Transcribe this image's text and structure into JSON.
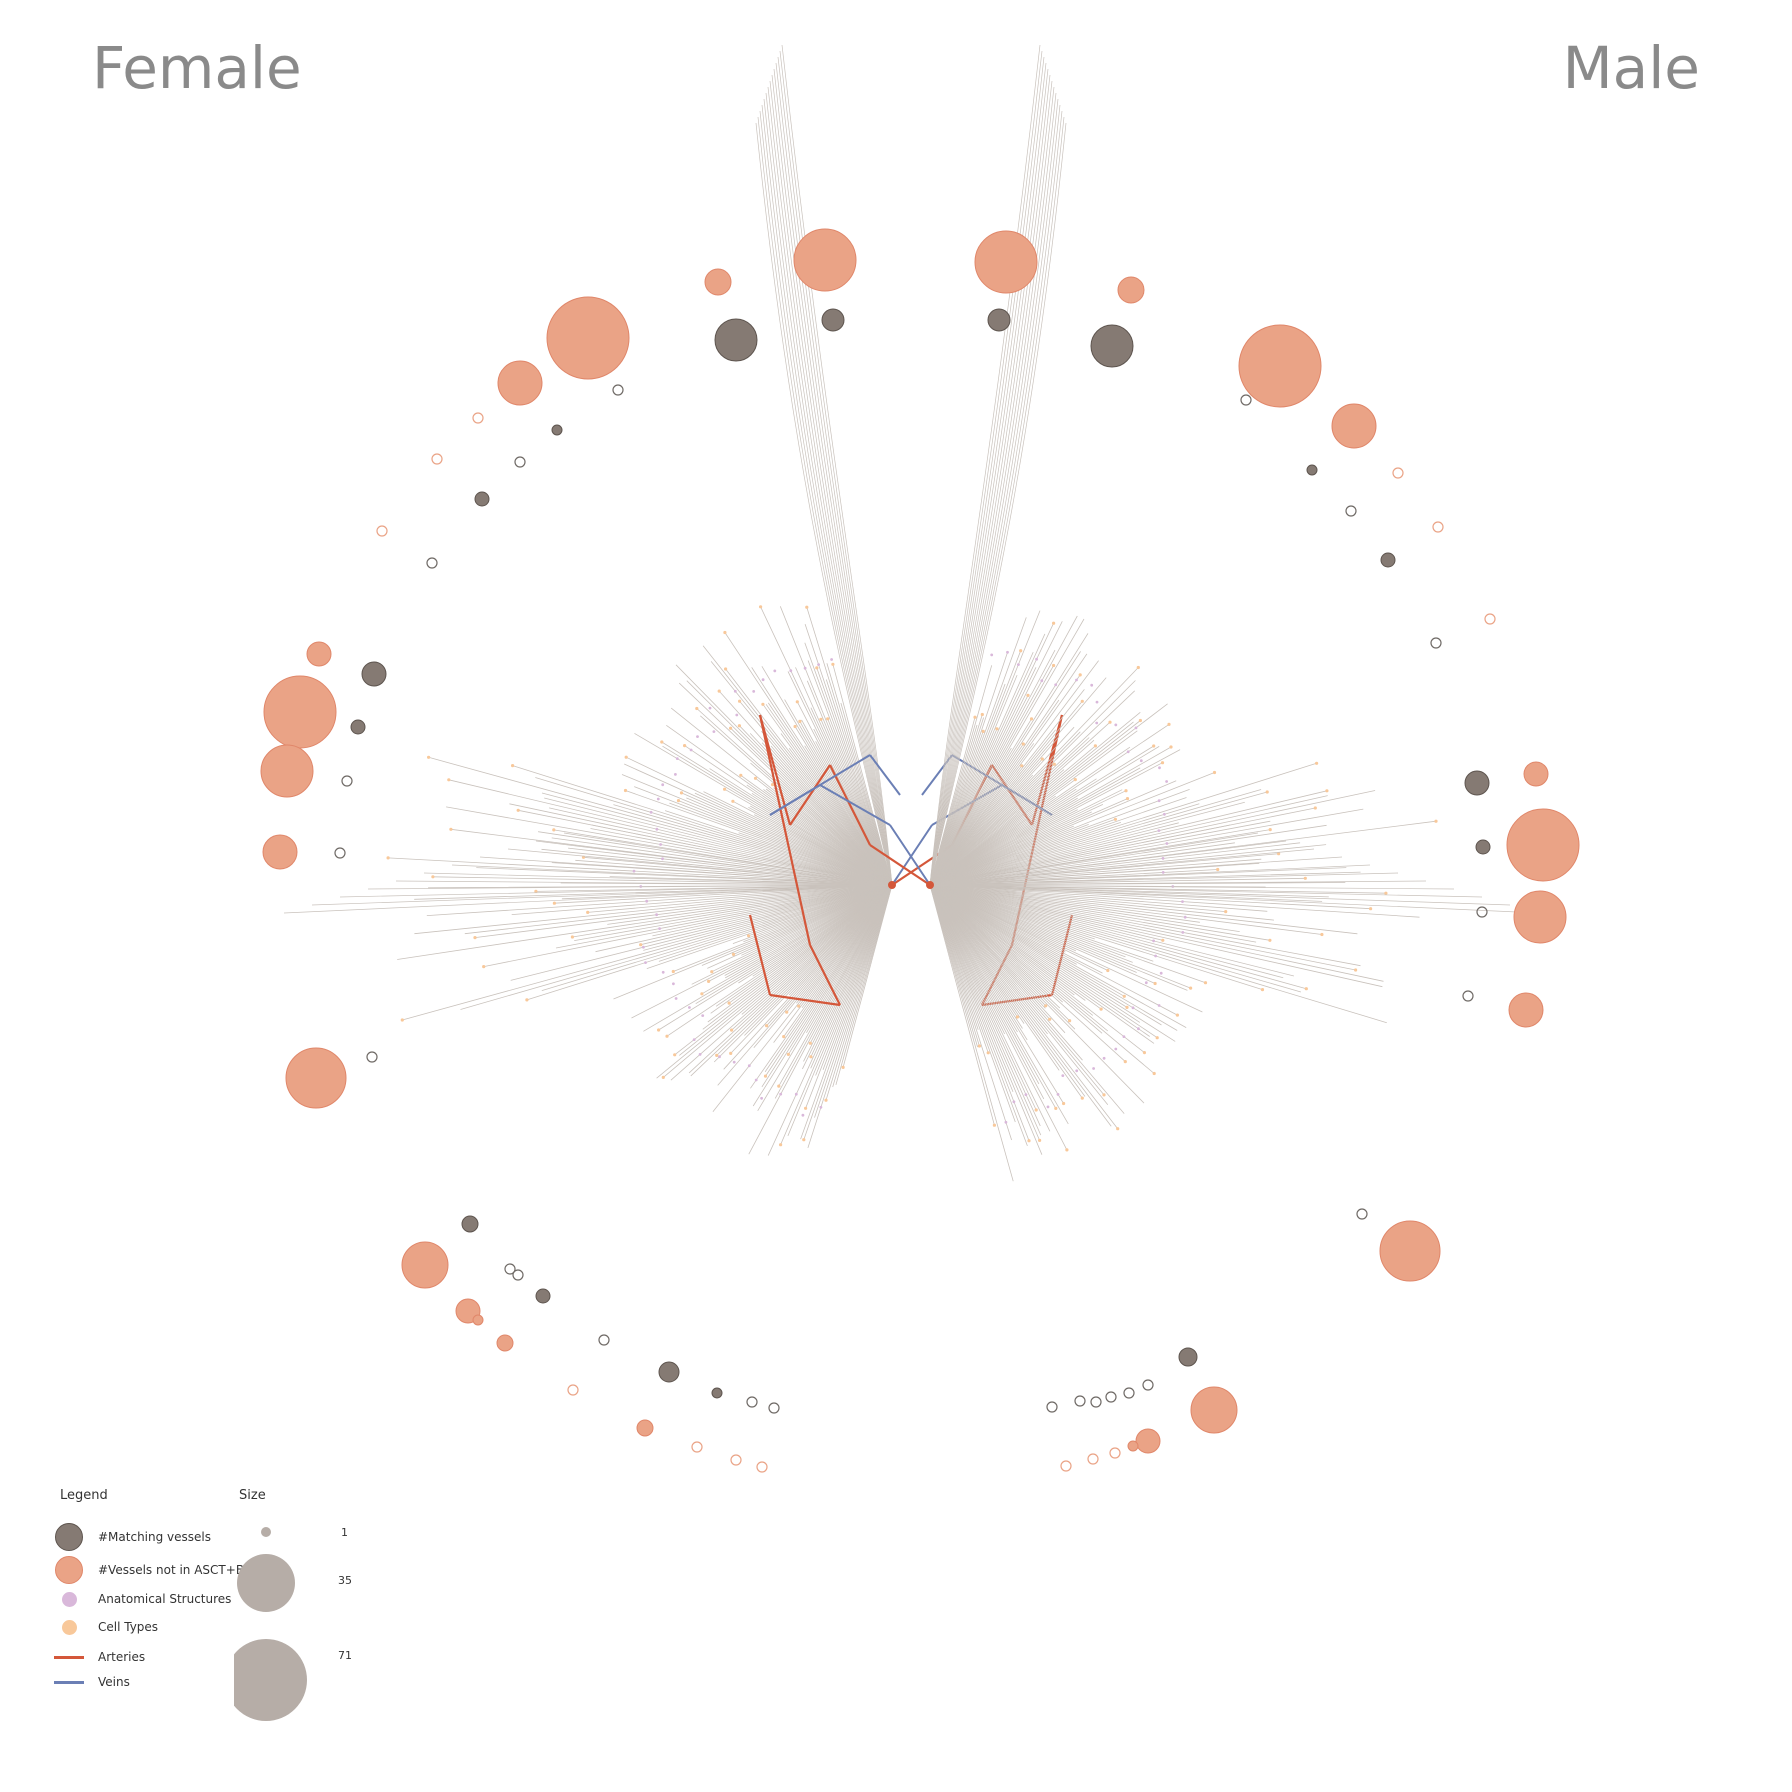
{
  "titles": {
    "female": "Female",
    "male": "Male"
  },
  "colors": {
    "matching": "#857a73",
    "not_in_asctb": "#eaa386",
    "not_in_asctb_stroke": "#e0876a",
    "anatomical": "#d9b8da",
    "cell_types": "#f8c89a",
    "arteries": "#d4573a",
    "veins": "#6b7fb5",
    "tree": "#c9c2bc",
    "outline_open": "#6f6a66",
    "outline_open_orange": "#eaa386"
  },
  "legend": {
    "heading": "Legend",
    "size_heading": "Size",
    "items": [
      {
        "label": "#Matching vessels",
        "kind": "matching"
      },
      {
        "label": "#Vessels not in ASCT+B",
        "kind": "not_in_asctb"
      },
      {
        "label": "Anatomical Structures",
        "kind": "anatomical"
      },
      {
        "label": "Cell Types",
        "kind": "cell_types"
      },
      {
        "label": "Arteries",
        "kind": "arteries"
      },
      {
        "label": "Veins",
        "kind": "veins"
      }
    ],
    "sizes": [
      {
        "value": 1
      },
      {
        "value": 35
      },
      {
        "value": 71
      }
    ]
  },
  "size_labels": [
    "1",
    "35",
    "71"
  ]
}
